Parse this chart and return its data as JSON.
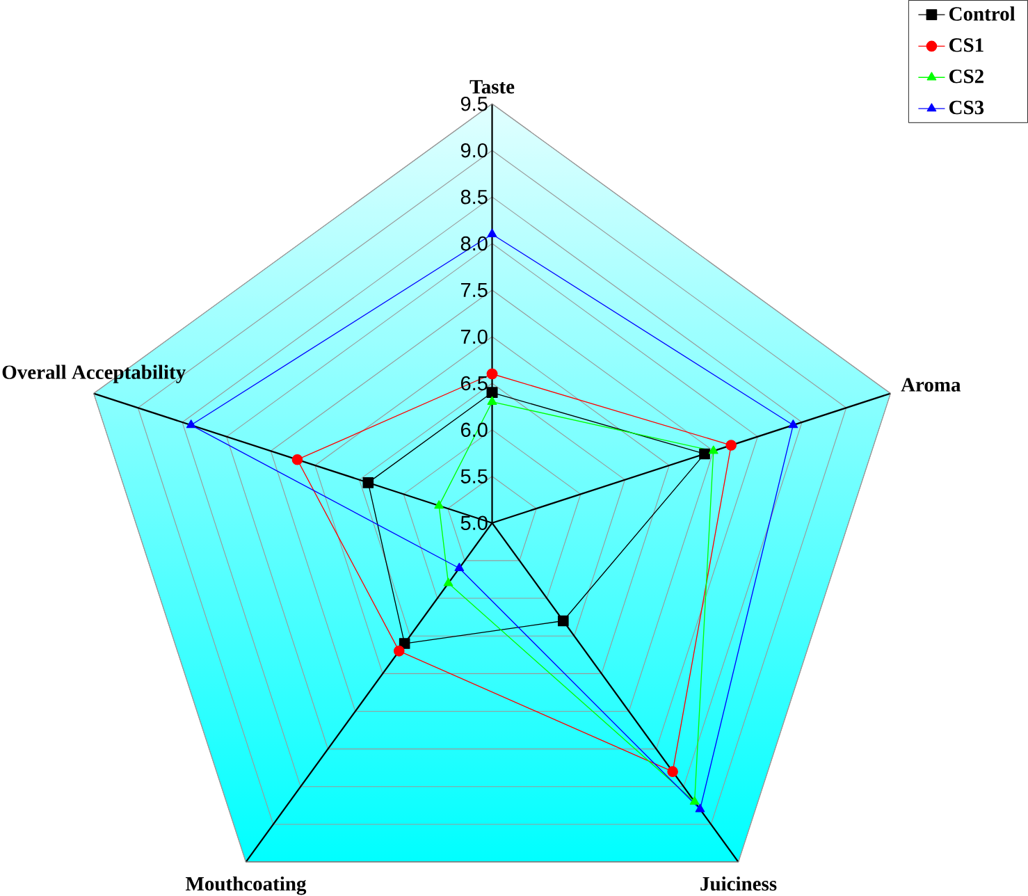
{
  "chart_data": {
    "type": "radar",
    "categories": [
      "Taste",
      "Aroma",
      "Juiciness",
      "Mouthcoating",
      "Overall Acceptability"
    ],
    "ylim": [
      5.0,
      9.5
    ],
    "yticks": [
      {
        "value": 5.0,
        "label": "5.0"
      },
      {
        "value": 5.5,
        "label": "5.5"
      },
      {
        "value": 6.0,
        "label": "6.0"
      },
      {
        "value": 6.5,
        "label": "6.5"
      },
      {
        "value": 7.0,
        "label": "7.0"
      },
      {
        "value": 7.5,
        "label": "7.5"
      },
      {
        "value": 8.0,
        "label": "8.0"
      },
      {
        "value": 8.5,
        "label": "8.5"
      },
      {
        "value": 9.0,
        "label": "9.0"
      },
      {
        "value": 9.5,
        "label": "9.5"
      }
    ],
    "grid": true,
    "legend": "top right",
    "series": [
      {
        "name": "Control",
        "color": "#000000",
        "marker": "square",
        "values": [
          6.4,
          7.4,
          6.3,
          6.6,
          6.4
        ]
      },
      {
        "name": "CS1",
        "color": "#ff0000",
        "marker": "circle",
        "values": [
          6.6,
          7.7,
          8.3,
          6.7,
          7.2
        ]
      },
      {
        "name": "CS2",
        "color": "#00ff00",
        "marker": "triangle",
        "values": [
          6.3,
          7.5,
          8.7,
          5.8,
          5.6
        ]
      },
      {
        "name": "CS3",
        "color": "#0000ff",
        "marker": "triangle-down",
        "values": [
          8.1,
          8.4,
          8.8,
          5.6,
          8.4
        ]
      }
    ]
  }
}
